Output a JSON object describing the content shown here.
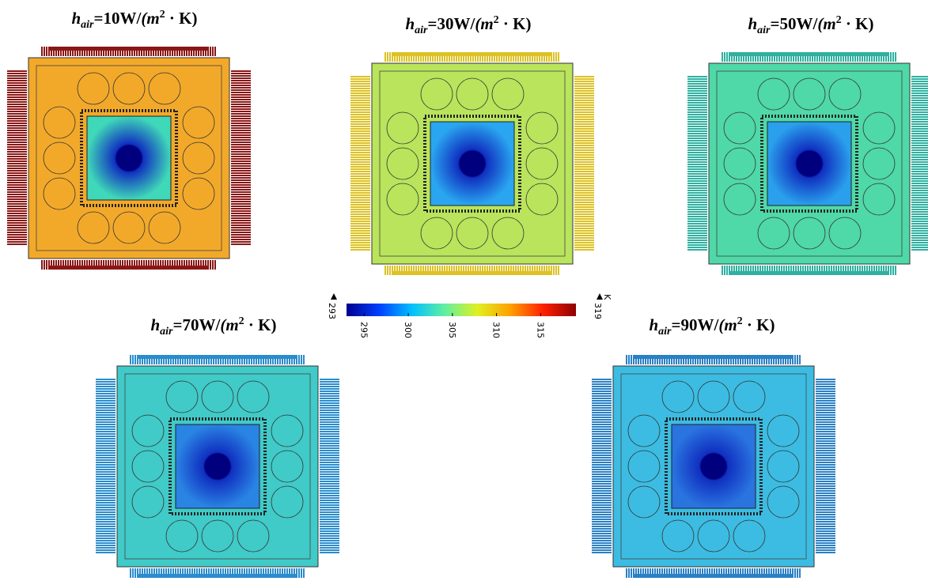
{
  "panels": [
    {
      "title": {
        "symbol": "h",
        "subscript": "air",
        "value": "=10W/",
        "unit_open": "(m",
        "superscript": "2",
        "unit_close": " · K)"
      },
      "plate_color": "#f2a92a",
      "pin_color": "#8a1616",
      "die_color": "#3fd8b8"
    },
    {
      "title": {
        "symbol": "h",
        "subscript": "air",
        "value": "=30W/",
        "unit_open": "(m",
        "superscript": "2",
        "unit_close": " · K)"
      },
      "plate_color": "#b9e45c",
      "pin_color": "#dcc224",
      "die_color": "#2aa6f0"
    },
    {
      "title": {
        "symbol": "h",
        "subscript": "air",
        "value": "=50W/",
        "unit_open": "(m",
        "superscript": "2",
        "unit_close": " · K)"
      },
      "plate_color": "#4fd8a8",
      "pin_color": "#2fb0a0",
      "die_color": "#2aa0ec"
    },
    {
      "title": {
        "symbol": "h",
        "subscript": "air",
        "value": "=70W/",
        "unit_open": "(m",
        "superscript": "2",
        "unit_close": " · K)"
      },
      "plate_color": "#40cac8",
      "pin_color": "#2a8ccc",
      "die_color": "#2a84e4"
    },
    {
      "title": {
        "symbol": "h",
        "subscript": "air",
        "value": "=90W/",
        "unit_open": "(m",
        "superscript": "2",
        "unit_close": " · K)"
      },
      "plate_color": "#3cbce2",
      "pin_color": "#2a80c4",
      "die_color": "#2a74e0"
    }
  ],
  "colorbar": {
    "min": 293,
    "max": 319,
    "ticks": [
      295,
      300,
      305,
      310,
      315
    ],
    "unit": "K",
    "colors": [
      "#00008f",
      "#0040ff",
      "#00c0ff",
      "#60f0a0",
      "#e0f020",
      "#ffa000",
      "#ff2000",
      "#8f0000"
    ]
  }
}
